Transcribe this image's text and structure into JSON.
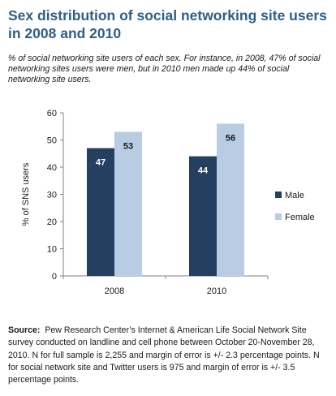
{
  "title": "Sex distribution of social networking site users in 2008 and 2010",
  "subtitle": "% of social networking site users of each sex. For instance, in 2008, 47% of social networking sites users were men, but in 2010 men made up 44% of social networking site users.",
  "source": {
    "label": "Source:",
    "text": "Pew Research Center’s Internet & American Life Social Network Site survey conducted on landline and cell phone between October 20-November 28, 2010. N for full sample is 2,255 and margin of error is +/- 2.3 percentage points. N for social network site and Twitter users is 975 and margin of error is +/- 3.5 percentage points."
  },
  "chart_data": {
    "type": "bar",
    "categories": [
      "2008",
      "2010"
    ],
    "series": [
      {
        "name": "Male",
        "values": [
          47,
          44
        ],
        "color": "#243f60"
      },
      {
        "name": "Female",
        "values": [
          53,
          56
        ],
        "color": "#b8cce4"
      }
    ],
    "ylabel": "% of SNS users",
    "xlabel": "",
    "ylim": [
      0,
      60
    ],
    "yticks": [
      0,
      10,
      20,
      30,
      40,
      50,
      60
    ],
    "grid": false,
    "legend": "right",
    "data_labels": [
      "47",
      "53",
      "44",
      "56"
    ]
  }
}
